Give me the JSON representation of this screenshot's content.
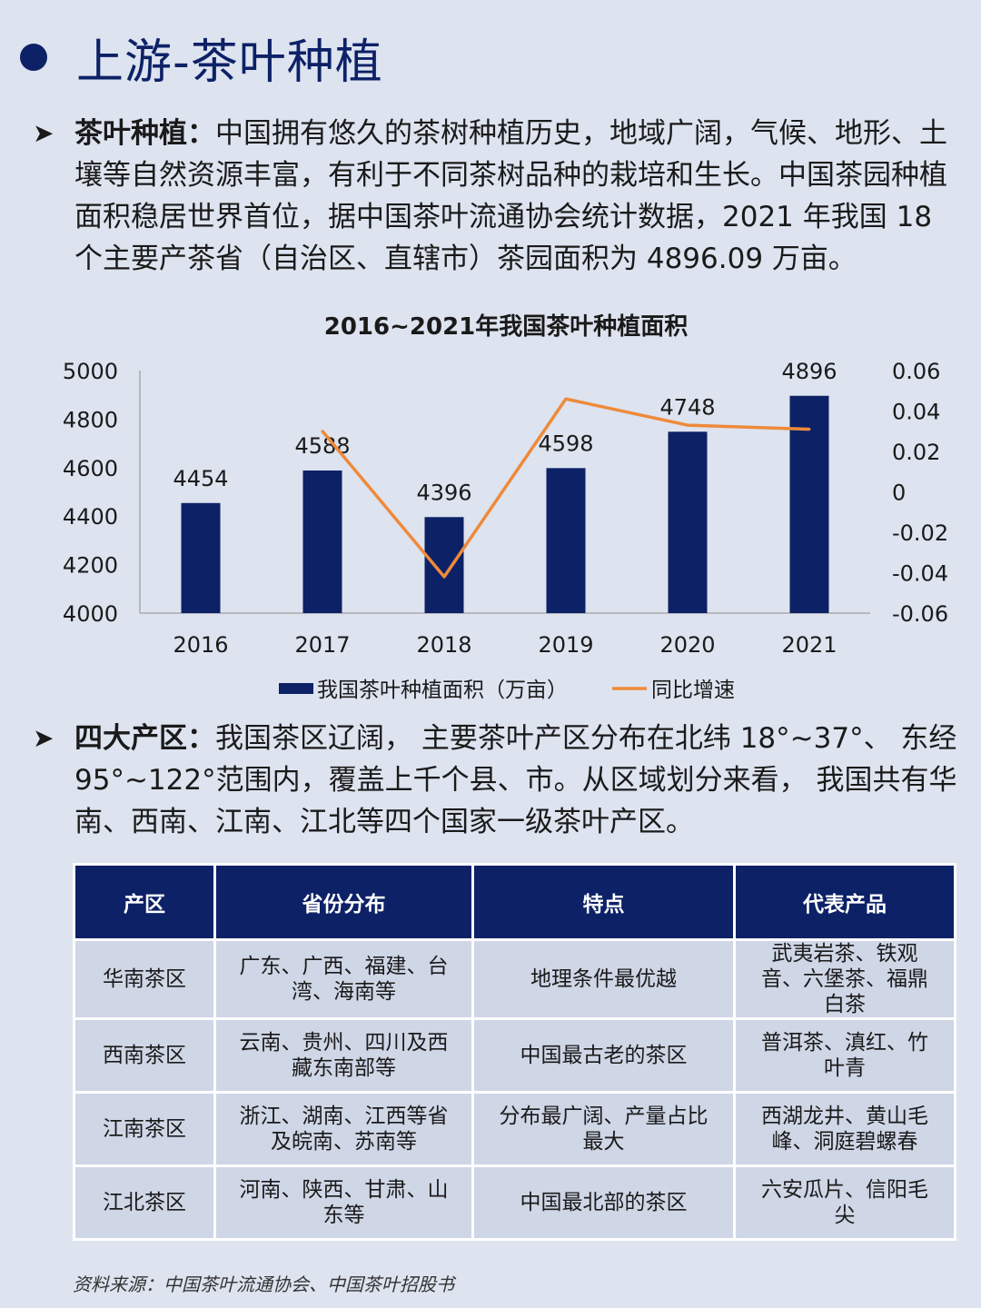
{
  "header": {
    "title": "上游-茶叶种植"
  },
  "section1": {
    "lead": "茶叶种植：",
    "text": "中国拥有悠久的茶树种植历史，地域广阔，气候、地形、土壤等自然资源丰富，有利于不同茶树品种的栽培和生长。中国茶园种植面积稳居世界首位，据中国茶叶流通协会统计数据，2021 年我国 18 个主要产茶省（自治区、直辖市）茶园面积为 4896.09 万亩。"
  },
  "chart_data": {
    "type": "bar",
    "title": "2016~2021年我国茶叶种植面积",
    "categories": [
      "2016",
      "2017",
      "2018",
      "2019",
      "2020",
      "2021"
    ],
    "series": [
      {
        "name": "我国茶叶种植面积（万亩）",
        "type": "bar",
        "axis": "left",
        "values": [
          4454,
          4588,
          4396,
          4598,
          4748,
          4896
        ],
        "labels": [
          "4454",
          "4588",
          "4396",
          "4598",
          "4748",
          "4896"
        ],
        "color": "#0d2167"
      },
      {
        "name": "同比增速",
        "type": "line",
        "axis": "right",
        "values": [
          null,
          0.03,
          -0.042,
          0.046,
          0.033,
          0.031
        ],
        "color": "#ee8a3a"
      }
    ],
    "ylim": [
      4000,
      5000
    ],
    "yticks": [
      "5000",
      "4800",
      "4600",
      "4400",
      "4200",
      "4000"
    ],
    "y2lim": [
      -0.06,
      0.06
    ],
    "y2ticks": [
      "0.06",
      "0.04",
      "0.02",
      "0",
      "-0.02",
      "-0.04",
      "-0.06"
    ],
    "legend_position": "bottom",
    "grid": false
  },
  "section2": {
    "lead": "四大产区：",
    "text": "我国茶区辽阔， 主要茶叶产区分布在北纬 18°~37°、 东经 95°~122°范围内，覆盖上千个县、市。从区域划分来看， 我国共有华南、西南、江南、江北等四个国家一级茶叶产区。"
  },
  "table": {
    "headers": [
      "产区",
      "省份分布",
      "特点",
      "代表产品"
    ],
    "rows": [
      [
        "华南茶区",
        "广东、广西、福建、台湾、海南等",
        "地理条件最优越",
        "武夷岩茶、铁观音、六堡茶、福鼎白茶"
      ],
      [
        "西南茶区",
        "云南、贵州、四川及西藏东南部等",
        "中国最古老的茶区",
        "普洱茶、滇红、竹叶青"
      ],
      [
        "江南茶区",
        "浙江、湖南、江西等省及皖南、苏南等",
        "分布最广阔、产量占比最大",
        "西湖龙井、黄山毛峰、洞庭碧螺春"
      ],
      [
        "江北茶区",
        "河南、陕西、甘肃、山东等",
        "中国最北部的茶区",
        "六安瓜片、信阳毛尖"
      ]
    ]
  },
  "footer": {
    "source": "资料来源：中国茶叶流通协会、中国茶叶招股书"
  }
}
